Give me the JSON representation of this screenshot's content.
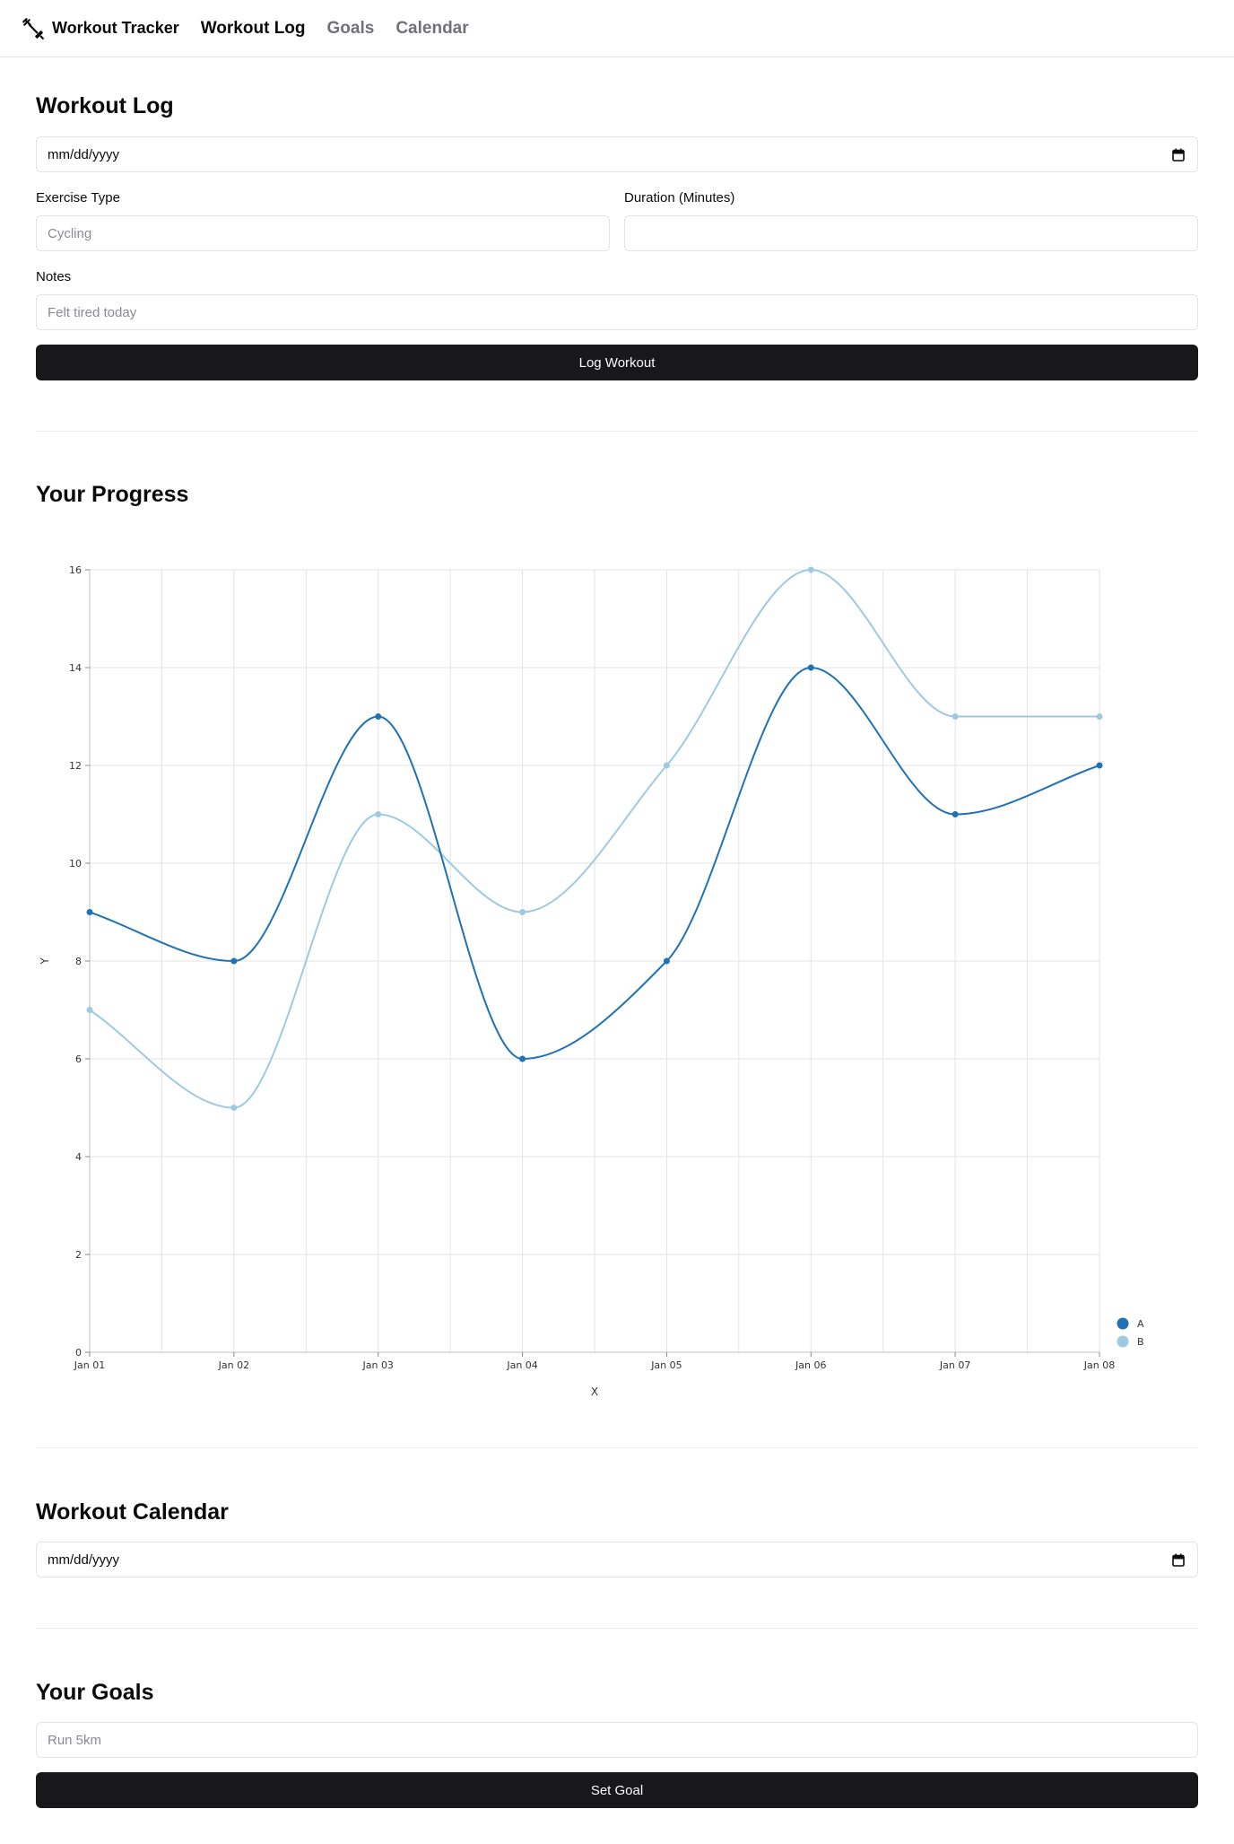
{
  "nav": {
    "brand": "Workout Tracker",
    "brand_icon": "dumbbell-icon",
    "links": [
      "Workout Log",
      "Goals",
      "Calendar"
    ],
    "active": "Workout Log"
  },
  "log": {
    "title": "Workout Log",
    "date_value": "mm/dd/yyyy",
    "exercise_label": "Exercise Type",
    "exercise_placeholder": "Cycling",
    "duration_label": "Duration (Minutes)",
    "duration_value": "",
    "notes_label": "Notes",
    "notes_placeholder": "Felt tired today",
    "submit": "Log Workout"
  },
  "progress": {
    "title": "Your Progress"
  },
  "calendar": {
    "title": "Workout Calendar",
    "date_value": "mm/dd/yyyy"
  },
  "goals": {
    "title": "Your Goals",
    "goal_placeholder": "Run 5km",
    "submit": "Set Goal"
  },
  "chart_data": {
    "type": "line",
    "curve": "smooth",
    "x": [
      "Jan 01",
      "Jan 02",
      "Jan 03",
      "Jan 04",
      "Jan 05",
      "Jan 06",
      "Jan 07",
      "Jan 08"
    ],
    "series": [
      {
        "name": "A",
        "values": [
          9,
          8,
          13,
          6,
          8,
          14,
          11,
          12
        ],
        "color": "#2171b5"
      },
      {
        "name": "B",
        "values": [
          7,
          5,
          11,
          9,
          12,
          16,
          13,
          13
        ],
        "color": "#9ecae1"
      }
    ],
    "xlabel": "X",
    "ylabel": "Y",
    "ylim": [
      0,
      16
    ],
    "yticks": [
      0,
      2,
      4,
      6,
      8,
      10,
      12,
      14,
      16
    ],
    "grid": true,
    "legend": "bottom-right"
  }
}
